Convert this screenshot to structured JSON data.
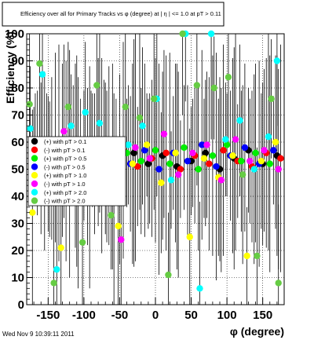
{
  "chart_data": {
    "type": "scatter",
    "title": "Efficiency over all for Primary Tracks vs φ (degree) at | η | <= 1.0 at pT > 0.11",
    "xlabel": "φ (degree)",
    "ylabel": "Efficiency (%)",
    "xlim": [
      -180,
      180
    ],
    "ylim": [
      0,
      100
    ],
    "x_ticks": [
      "-150",
      "-100",
      "-50",
      "0",
      "50",
      "100",
      "150"
    ],
    "y_ticks": [
      "0",
      "10",
      "20",
      "30",
      "40",
      "50",
      "60",
      "70",
      "80",
      "90",
      "100"
    ],
    "grid": true,
    "legend_position": "left-center",
    "timestamp": "Wed Nov  9 10:39:11 2011",
    "series": [
      {
        "name": "(+) with pT > 0.1",
        "color": "#000000",
        "x": [
          -170,
          -150,
          -130,
          -110,
          -90,
          -70,
          -50,
          -30,
          -10,
          10,
          30,
          50,
          70,
          90,
          110,
          130,
          150,
          170
        ],
        "y": [
          55,
          52,
          57,
          53,
          58,
          54,
          50,
          56,
          52,
          55,
          51,
          53,
          56,
          50,
          54,
          57,
          52,
          55
        ]
      },
      {
        "name": "(-) with pT > 0.1",
        "color": "#ff0000",
        "x": [
          -165,
          -145,
          -125,
          -105,
          -85,
          -65,
          -45,
          -25,
          -5,
          15,
          35,
          55,
          75,
          95,
          115,
          135,
          155,
          175
        ],
        "y": [
          56,
          54,
          53,
          57,
          52,
          55,
          57,
          51,
          54,
          56,
          50,
          55,
          52,
          57,
          53,
          51,
          56,
          54
        ]
      },
      {
        "name": "(+) with pT > 0.5",
        "color": "#00ee00",
        "x": [
          -160,
          -140,
          -120,
          -100,
          -80,
          -60,
          -40,
          -20,
          0,
          20,
          40,
          60,
          80,
          100,
          120,
          140,
          160
        ],
        "y": [
          54,
          58,
          52,
          55,
          60,
          51,
          56,
          53,
          57,
          52,
          58,
          50,
          55,
          59,
          53,
          56,
          52
        ]
      },
      {
        "name": "(-) with pT > 0.5",
        "color": "#0000ff",
        "x": [
          -155,
          -135,
          -115,
          -95,
          -75,
          -55,
          -35,
          -15,
          5,
          25,
          45,
          65,
          85,
          105,
          125,
          145,
          165
        ],
        "y": [
          53,
          56,
          59,
          51,
          55,
          58,
          52,
          57,
          50,
          56,
          53,
          59,
          51,
          55,
          58,
          52,
          57
        ]
      },
      {
        "name": "(+) with pT > 1.0",
        "color": "#ffff00",
        "x": [
          -172,
          -152,
          -132,
          -112,
          -92,
          -72,
          -52,
          -32,
          -12,
          8,
          28,
          48,
          68,
          88,
          108,
          128,
          148,
          168
        ],
        "y": [
          34,
          58,
          21,
          55,
          47,
          60,
          29,
          52,
          59,
          45,
          56,
          25,
          54,
          47,
          55,
          18,
          53,
          60
        ]
      },
      {
        "name": "(-) with pT > 1.0",
        "color": "#ff00ff",
        "x": [
          -168,
          -148,
          -128,
          -108,
          -88,
          -68,
          -48,
          -28,
          -8,
          12,
          32,
          52,
          72,
          92,
          112,
          132,
          152,
          172
        ],
        "y": [
          60,
          50,
          64,
          45,
          57,
          51,
          24,
          58,
          54,
          63,
          48,
          56,
          59,
          46,
          61,
          53,
          57,
          50
        ]
      },
      {
        "name": "(+) with pT > 2.0",
        "color": "#00ffff",
        "x": [
          -175,
          -158,
          -138,
          -118,
          -98,
          -78,
          -58,
          -38,
          -18,
          2,
          22,
          42,
          62,
          78,
          98,
          118,
          138,
          158,
          170
        ],
        "y": [
          65,
          85,
          13,
          66,
          71,
          67,
          38,
          59,
          66,
          76,
          46,
          100,
          6,
          100,
          61,
          68,
          50,
          62,
          90
        ]
      },
      {
        "name": "(-) with pT > 2.0",
        "color": "#66cc44",
        "x": [
          -176,
          -162,
          -142,
          -122,
          -102,
          -82,
          -62,
          -42,
          -22,
          -2,
          18,
          38,
          58,
          82,
          102,
          122,
          142,
          162,
          172
        ],
        "y": [
          74,
          89,
          8,
          73,
          23,
          81,
          33,
          73,
          69,
          76,
          11,
          100,
          81,
          80,
          84,
          48,
          18,
          76,
          8
        ]
      }
    ]
  }
}
